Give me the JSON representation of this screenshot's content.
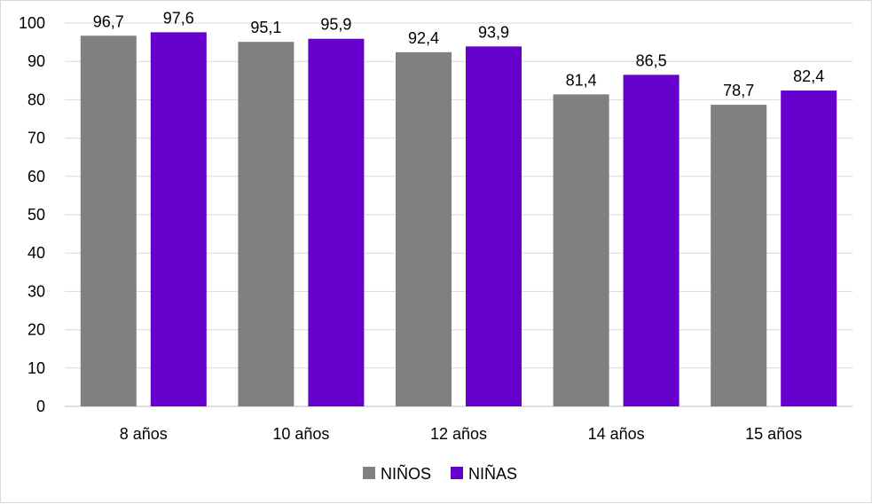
{
  "chart_data": {
    "type": "bar",
    "categories": [
      "8 años",
      "10 años",
      "12 años",
      "14 años",
      "15 años"
    ],
    "series": [
      {
        "name": "NIÑOS",
        "color": "#808080",
        "values": [
          96.7,
          95.1,
          92.4,
          81.4,
          78.7
        ],
        "labels": [
          "96,7",
          "95,1",
          "92,4",
          "81,4",
          "78,7"
        ]
      },
      {
        "name": "NIÑAS",
        "color": "#6600CC",
        "values": [
          97.6,
          95.9,
          93.9,
          86.5,
          82.4
        ],
        "labels": [
          "97,6",
          "95,9",
          "93,9",
          "86,5",
          "82,4"
        ]
      }
    ],
    "ylim": [
      0,
      100
    ],
    "yticks": [
      0,
      10,
      20,
      30,
      40,
      50,
      60,
      70,
      80,
      90,
      100
    ],
    "grid": true,
    "legend_position": "bottom",
    "gridline_color": "#d9d9d9",
    "axis_color": "#bfbfbf"
  }
}
